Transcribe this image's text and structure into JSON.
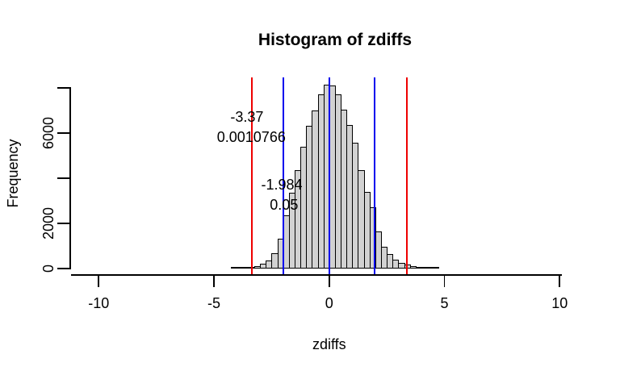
{
  "figure": {
    "title": "Histogram of zdiffs",
    "xlabel": "zdiffs",
    "ylabel": "Frequency"
  },
  "chart_data": {
    "type": "bar",
    "subtype": "histogram",
    "title": "Histogram of zdiffs",
    "xlabel": "zdiffs",
    "ylabel": "Frequency",
    "grid": false,
    "legend": null,
    "bin_start": -4.25,
    "bin_width": 0.25,
    "counts": [
      1,
      3,
      8,
      25,
      60,
      140,
      300,
      620,
      1250,
      2300,
      3300,
      4280,
      5350,
      6250,
      6950,
      7650,
      8100,
      8030,
      7650,
      6980,
      6300,
      5500,
      4280,
      3320,
      2650,
      1600,
      900,
      580,
      350,
      200,
      130,
      60,
      25,
      10,
      4,
      2
    ],
    "xlim": [
      -11.2,
      11.2
    ],
    "ylim": [
      0,
      8460
    ],
    "x_ticks": [
      {
        "value": -10,
        "label": "-10"
      },
      {
        "value": -5,
        "label": "-5"
      },
      {
        "value": 0,
        "label": "0"
      },
      {
        "value": 5,
        "label": "5"
      },
      {
        "value": 10,
        "label": "10"
      }
    ],
    "y_ticks": [
      {
        "value": 0,
        "label": "0"
      },
      {
        "value": 2000,
        "label": "2000"
      },
      {
        "value": 4000,
        "label": ""
      },
      {
        "value": 6000,
        "label": "6000"
      },
      {
        "value": 8000,
        "label": ""
      }
    ],
    "bar_fill": "#d2d2d2",
    "bar_border": "#000000",
    "vlines": [
      {
        "x": -3.37,
        "color": "#ee0000",
        "name": "red-line-neg-3.37"
      },
      {
        "x": -1.984,
        "color": "#0000ee",
        "name": "blue-line-neg-1.984"
      },
      {
        "x": 0,
        "color": "#0000ee",
        "name": "blue-line-zero"
      },
      {
        "x": 1.984,
        "color": "#0000ee",
        "name": "blue-line-pos-1.984"
      },
      {
        "x": 3.37,
        "color": "#ee0000",
        "name": "red-line-pos-3.37"
      }
    ],
    "annotations": [
      {
        "text": "-3.37",
        "x": -3.57,
        "y": 6700
      },
      {
        "text": "0.0010766",
        "x": -3.38,
        "y": 5820
      },
      {
        "text": "-1.984",
        "x": -2.06,
        "y": 3710
      },
      {
        "text": "0.05",
        "x": -1.96,
        "y": 2820
      }
    ]
  }
}
